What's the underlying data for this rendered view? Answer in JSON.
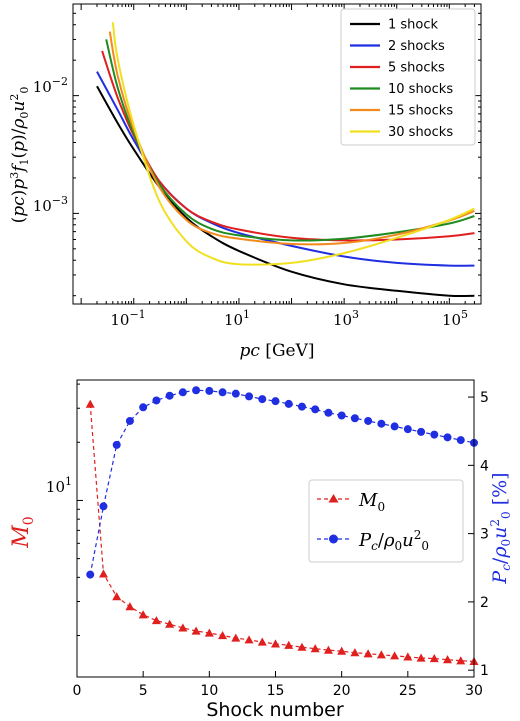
{
  "chart_data": [
    {
      "type": "line",
      "xlabel": "pc [GeV]",
      "ylabel": "(pc)p^3 f_1(p)/ρ_0 u_0^2",
      "xscale": "log",
      "yscale": "log",
      "xlim": [
        0.007,
        400000
      ],
      "ylim": [
        0.00017,
        0.06
      ],
      "xticks": [
        0.1,
        10,
        1000,
        100000
      ],
      "xtick_labels": [
        "10^{-1}",
        "10^{1}",
        "10^{3}",
        "10^{5}"
      ],
      "yticks": [
        0.001,
        0.01
      ],
      "ytick_labels": [
        "10^{-3}",
        "10^{-2}"
      ],
      "legend_position": "upper right",
      "grid": false,
      "series": [
        {
          "name": "1 shock",
          "color": "#000000",
          "x": [
            0.02,
            0.05,
            0.1,
            0.3,
            1,
            3,
            10,
            100,
            1000,
            10000,
            100000,
            300000
          ],
          "y": [
            0.012,
            0.0058,
            0.0035,
            0.0017,
            0.00092,
            0.00064,
            0.00048,
            0.00032,
            0.00025,
            0.00022,
            0.0002,
            0.0002
          ]
        },
        {
          "name": "2 shocks",
          "color": "#1f2ee0",
          "x": [
            0.02,
            0.05,
            0.1,
            0.3,
            1,
            3,
            10,
            100,
            1000,
            10000,
            100000,
            300000
          ],
          "y": [
            0.016,
            0.0075,
            0.0042,
            0.0019,
            0.0011,
            0.00083,
            0.00068,
            0.00053,
            0.00043,
            0.00038,
            0.00036,
            0.00036
          ]
        },
        {
          "name": "5 shocks",
          "color": "#e01f1f",
          "x": [
            0.025,
            0.05,
            0.1,
            0.3,
            1,
            3,
            10,
            100,
            1000,
            10000,
            100000,
            300000
          ],
          "y": [
            0.024,
            0.0095,
            0.0046,
            0.0019,
            0.0011,
            0.00085,
            0.00073,
            0.00062,
            0.00059,
            0.0006,
            0.00064,
            0.00068
          ]
        },
        {
          "name": "10 shocks",
          "color": "#1e8c1e",
          "x": [
            0.03,
            0.05,
            0.1,
            0.3,
            1,
            3,
            10,
            100,
            1000,
            10000,
            100000,
            300000
          ],
          "y": [
            0.03,
            0.0115,
            0.0048,
            0.0018,
            0.00098,
            0.00074,
            0.00065,
            0.00059,
            0.00061,
            0.00069,
            0.00082,
            0.00095
          ]
        },
        {
          "name": "15 shocks",
          "color": "#f28a1e",
          "x": [
            0.035,
            0.05,
            0.1,
            0.3,
            1,
            3,
            10,
            100,
            1000,
            10000,
            100000,
            300000
          ],
          "y": [
            0.035,
            0.0145,
            0.0052,
            0.0017,
            0.00088,
            0.00068,
            0.00061,
            0.00055,
            0.00056,
            0.00066,
            0.00087,
            0.00105
          ]
        },
        {
          "name": "30 shocks",
          "color": "#f0e020",
          "x": [
            0.04,
            0.05,
            0.1,
            0.3,
            1,
            3,
            10,
            100,
            1000,
            10000,
            100000,
            300000
          ],
          "y": [
            0.042,
            0.02,
            0.0056,
            0.0013,
            0.00058,
            0.00042,
            0.00037,
            0.00038,
            0.00046,
            0.00062,
            0.00088,
            0.0011
          ]
        }
      ]
    },
    {
      "type": "line",
      "xlabel": "Shock number",
      "ylabel_left": "M_0",
      "ylabel_right": "P_c/ρ_0 u_0^2 [%]",
      "xlim": [
        0,
        30
      ],
      "xticks": [
        0,
        5,
        10,
        15,
        20,
        25,
        30
      ],
      "left_axis": {
        "scale": "log",
        "ylim": [
          1.22,
          42
        ],
        "ticks": [
          10
        ],
        "tick_labels": [
          "10^{1}"
        ],
        "color": "#e01f1f"
      },
      "right_axis": {
        "scale": "linear",
        "ylim": [
          0.9,
          5.25
        ],
        "ticks": [
          1,
          2,
          3,
          4,
          5
        ],
        "tick_labels": [
          "1",
          "2",
          "3",
          "4",
          "5"
        ],
        "color": "#1f2ee0"
      },
      "legend_position": "center right",
      "grid": false,
      "x": [
        1,
        2,
        3,
        4,
        5,
        6,
        7,
        8,
        9,
        10,
        11,
        12,
        13,
        14,
        15,
        16,
        17,
        18,
        19,
        20,
        21,
        22,
        23,
        24,
        25,
        26,
        27,
        28,
        29,
        30
      ],
      "series": [
        {
          "name": "M_0",
          "axis": "left",
          "marker": "triangle",
          "linestyle": "dashed",
          "color": "#e01f1f",
          "values": [
            31.5,
            4.17,
            3.18,
            2.82,
            2.56,
            2.39,
            2.29,
            2.19,
            2.11,
            2.06,
            2.0,
            1.94,
            1.9,
            1.85,
            1.81,
            1.78,
            1.74,
            1.71,
            1.68,
            1.66,
            1.63,
            1.61,
            1.59,
            1.57,
            1.55,
            1.53,
            1.52,
            1.5,
            1.48,
            1.47
          ]
        },
        {
          "name": "P_c/ρ_0 u_0^2",
          "axis": "right",
          "marker": "circle",
          "linestyle": "dashed",
          "color": "#1f2ee0",
          "values": [
            2.4,
            3.4,
            4.3,
            4.65,
            4.85,
            4.95,
            5.02,
            5.07,
            5.1,
            5.09,
            5.07,
            5.05,
            5.01,
            4.97,
            4.94,
            4.9,
            4.86,
            4.82,
            4.77,
            4.73,
            4.69,
            4.65,
            4.61,
            4.57,
            4.53,
            4.49,
            4.45,
            4.41,
            4.37,
            4.33
          ]
        }
      ]
    }
  ]
}
